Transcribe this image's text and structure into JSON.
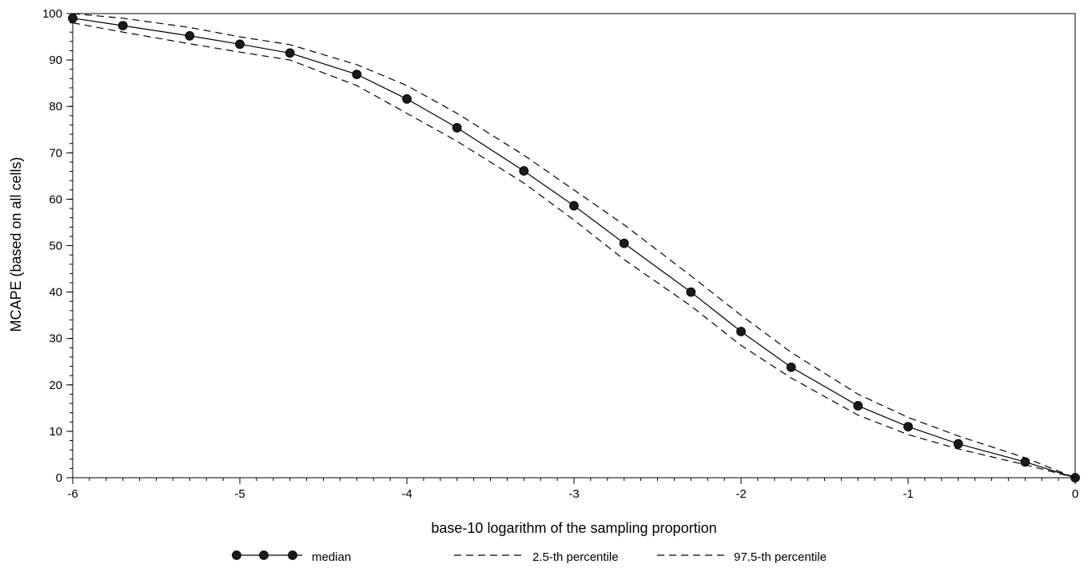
{
  "chart_data": {
    "type": "line",
    "title": "",
    "xlabel": "base-10 logarithm of the sampling proportion",
    "ylabel": "MCAPE (based on all cells)",
    "xlim": [
      -6,
      0
    ],
    "ylim": [
      0,
      100
    ],
    "x_ticks": [
      -6,
      -5,
      -4,
      -3,
      -2,
      -1,
      0
    ],
    "y_ticks": [
      0,
      10,
      20,
      30,
      40,
      50,
      60,
      70,
      80,
      90,
      100
    ],
    "x_minor_step": 0.1,
    "y_minor_step": 2,
    "x": [
      -6.0,
      -5.7,
      -5.3,
      -5.0,
      -4.7,
      -4.3,
      -4.0,
      -3.7,
      -3.3,
      -3.0,
      -2.7,
      -2.3,
      -2.0,
      -1.7,
      -1.3,
      -1.0,
      -0.7,
      -0.3,
      0.0
    ],
    "series": [
      {
        "name": "median",
        "style": "solid-markers",
        "values": [
          99.0,
          97.4,
          95.2,
          93.4,
          91.5,
          86.9,
          81.6,
          75.4,
          66.1,
          58.6,
          50.5,
          40.0,
          31.5,
          23.8,
          15.5,
          11.0,
          7.3,
          3.4,
          0.0
        ]
      },
      {
        "name": "2.5-th percentile",
        "style": "dashed",
        "values": [
          98.0,
          96.0,
          93.5,
          91.7,
          90.0,
          84.5,
          78.5,
          72.5,
          63.5,
          55.5,
          47.0,
          37.0,
          28.5,
          21.5,
          13.5,
          9.3,
          6.2,
          2.8,
          0.0
        ]
      },
      {
        "name": "97.5-th percentile",
        "style": "dashed",
        "values": [
          100.0,
          99.0,
          97.0,
          95.0,
          93.3,
          89.0,
          84.5,
          78.5,
          69.5,
          62.0,
          54.5,
          43.5,
          35.0,
          27.0,
          18.0,
          13.0,
          9.0,
          4.3,
          0.0
        ]
      }
    ],
    "legend": [
      "median",
      "2.5-th percentile",
      "97.5-th percentile"
    ],
    "legend_position": "bottom",
    "grid": false,
    "colors": {
      "line": "#000000",
      "marker": "#1a1a1a"
    }
  }
}
